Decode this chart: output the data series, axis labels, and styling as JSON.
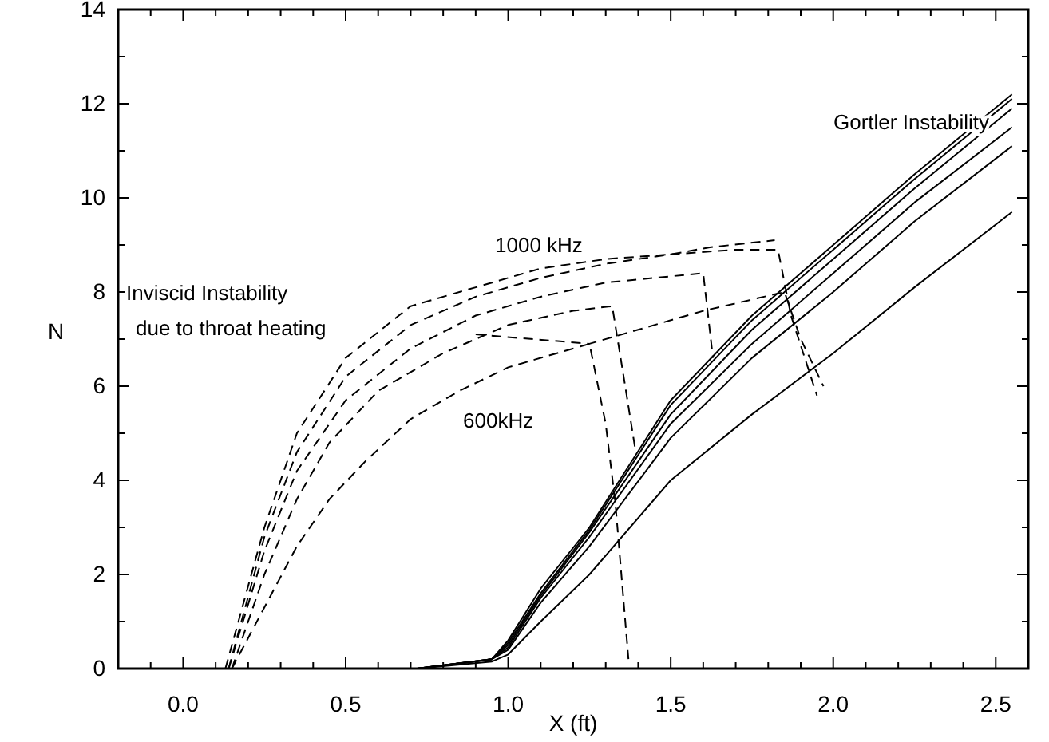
{
  "chart_data": {
    "type": "line",
    "xlabel": "X (ft)",
    "ylabel": "N",
    "xlim": [
      -0.2,
      2.6
    ],
    "ylim": [
      0,
      14
    ],
    "xticks": [
      {
        "value": -0.1,
        "label": null
      },
      {
        "value": 0,
        "label": "0.0"
      },
      {
        "value": 0.1,
        "label": null
      },
      {
        "value": 0.2,
        "label": null
      },
      {
        "value": 0.3,
        "label": null
      },
      {
        "value": 0.4,
        "label": null
      },
      {
        "value": 0.5,
        "label": "0.5"
      },
      {
        "value": 0.6,
        "label": null
      },
      {
        "value": 0.7,
        "label": null
      },
      {
        "value": 0.8,
        "label": null
      },
      {
        "value": 0.9,
        "label": null
      },
      {
        "value": 1,
        "label": "1.0"
      },
      {
        "value": 1.1,
        "label": null
      },
      {
        "value": 1.2,
        "label": null
      },
      {
        "value": 1.3,
        "label": null
      },
      {
        "value": 1.4,
        "label": null
      },
      {
        "value": 1.5,
        "label": "1.5"
      },
      {
        "value": 1.6,
        "label": null
      },
      {
        "value": 1.7,
        "label": null
      },
      {
        "value": 1.8,
        "label": null
      },
      {
        "value": 1.9,
        "label": null
      },
      {
        "value": 2,
        "label": "2.0"
      },
      {
        "value": 2.1,
        "label": null
      },
      {
        "value": 2.2,
        "label": null
      },
      {
        "value": 2.3,
        "label": null
      },
      {
        "value": 2.4,
        "label": null
      },
      {
        "value": 2.5,
        "label": "2.5"
      }
    ],
    "yticks": [
      0,
      {
        "value": 1,
        "label": null
      },
      2,
      {
        "value": 3,
        "label": null
      },
      4,
      {
        "value": 5,
        "label": null
      },
      6,
      {
        "value": 7,
        "label": null
      },
      8,
      {
        "value": 9,
        "label": null
      },
      10,
      {
        "value": 11,
        "label": null
      },
      12,
      {
        "value": 13,
        "label": null
      },
      14
    ],
    "grid": false,
    "marker": "none",
    "series": [
      {
        "color": "#000000",
        "line_style": "dashed",
        "x": [
          0.15,
          0.25,
          0.35,
          0.45,
          0.56,
          0.7,
          0.85,
          1.0,
          1.15,
          1.25,
          1.3,
          1.33,
          1.37
        ],
        "values": [
          0,
          1.3,
          2.6,
          3.6,
          4.4,
          5.3,
          5.9,
          6.4,
          6.7,
          6.9,
          5.2,
          3.5,
          0.2
        ]
      },
      {
        "color": "#000000",
        "line_style": "dashed",
        "x": [
          0.15,
          0.25,
          0.35,
          0.45,
          0.6,
          0.8,
          1.0,
          1.2,
          1.32,
          1.36,
          1.39
        ],
        "values": [
          0,
          2,
          3.6,
          4.8,
          5.9,
          6.7,
          7.3,
          7.6,
          7.7,
          6,
          4.7
        ]
      },
      {
        "color": "#000000",
        "line_style": "dashed",
        "x": [
          0.14,
          0.25,
          0.35,
          0.5,
          0.7,
          0.9,
          1.1,
          1.3,
          1.6,
          1.63
        ],
        "values": [
          0,
          2.5,
          4.2,
          5.7,
          6.8,
          7.5,
          7.9,
          8.2,
          8.4,
          6.6
        ]
      },
      {
        "color": "#000000",
        "line_style": "dashed",
        "x": [
          0.14,
          0.25,
          0.35,
          0.5,
          0.7,
          0.9,
          1.1,
          1.3,
          1.5,
          1.7,
          1.83,
          1.87,
          1.95
        ],
        "values": [
          0,
          2.8,
          4.6,
          6.2,
          7.3,
          7.9,
          8.3,
          8.6,
          8.8,
          8.9,
          8.9,
          7.5,
          5.8
        ]
      },
      {
        "color": "#000000",
        "line_style": "dashed",
        "x": [
          0.13,
          0.25,
          0.35,
          0.5,
          0.7,
          0.9,
          1.1,
          1.3,
          1.5,
          1.62,
          1.82
        ],
        "values": [
          0,
          3,
          5,
          6.6,
          7.7,
          8.1,
          8.5,
          8.7,
          8.8,
          8.95,
          9.1
        ]
      },
      {
        "color": "#000000",
        "line_style": "dashed",
        "x": [
          0.9,
          1.25,
          1.6,
          1.85,
          1.9,
          1.97
        ],
        "values": [
          7.1,
          6.9,
          7.6,
          8,
          7,
          6
        ]
      },
      {
        "color": "#000000",
        "line_style": "solid",
        "x": [
          0.72,
          0.95,
          1.0,
          1.1,
          1.25,
          1.5,
          1.75,
          2.0,
          2.25,
          2.55
        ],
        "values": [
          0,
          0.2,
          0.6,
          1.7,
          3.0,
          5.7,
          7.5,
          9.0,
          10.5,
          12.2
        ]
      },
      {
        "color": "#000000",
        "line_style": "solid",
        "x": [
          0.72,
          0.95,
          1.0,
          1.1,
          1.25,
          1.5,
          1.75,
          2.0,
          2.25,
          2.55
        ],
        "values": [
          0,
          0.2,
          0.55,
          1.6,
          2.95,
          5.6,
          7.4,
          8.9,
          10.4,
          12.1
        ]
      },
      {
        "color": "#000000",
        "line_style": "solid",
        "x": [
          0.72,
          0.95,
          1.0,
          1.1,
          1.25,
          1.5,
          1.75,
          2.0,
          2.25,
          2.55
        ],
        "values": [
          0,
          0.2,
          0.5,
          1.55,
          2.9,
          5.4,
          7.2,
          8.7,
          10.2,
          11.9
        ]
      },
      {
        "color": "#000000",
        "line_style": "solid",
        "x": [
          0.72,
          0.95,
          1.0,
          1.1,
          1.25,
          1.5,
          1.75,
          2.0,
          2.25,
          2.55
        ],
        "values": [
          0,
          0.2,
          0.45,
          1.5,
          2.8,
          5.2,
          6.9,
          8.4,
          9.9,
          11.5
        ]
      },
      {
        "color": "#000000",
        "line_style": "solid",
        "x": [
          0.72,
          0.95,
          1.0,
          1.1,
          1.25,
          1.5,
          1.75,
          2.0,
          2.25,
          2.55
        ],
        "values": [
          0,
          0.2,
          0.4,
          1.4,
          2.6,
          4.9,
          6.6,
          8.0,
          9.5,
          11.1
        ]
      },
      {
        "color": "#000000",
        "line_style": "solid",
        "x": [
          0.72,
          0.95,
          1.0,
          1.1,
          1.25,
          1.5,
          1.75,
          2.0,
          2.25,
          2.55
        ],
        "values": [
          0,
          0.15,
          0.3,
          1.0,
          2.0,
          4.0,
          5.4,
          6.7,
          8.1,
          9.7
        ]
      }
    ],
    "annotations": [
      "1000 kHz",
      "600kHz",
      "Inviscid Instability",
      "due to throat heating",
      "Gortler Instability"
    ]
  }
}
